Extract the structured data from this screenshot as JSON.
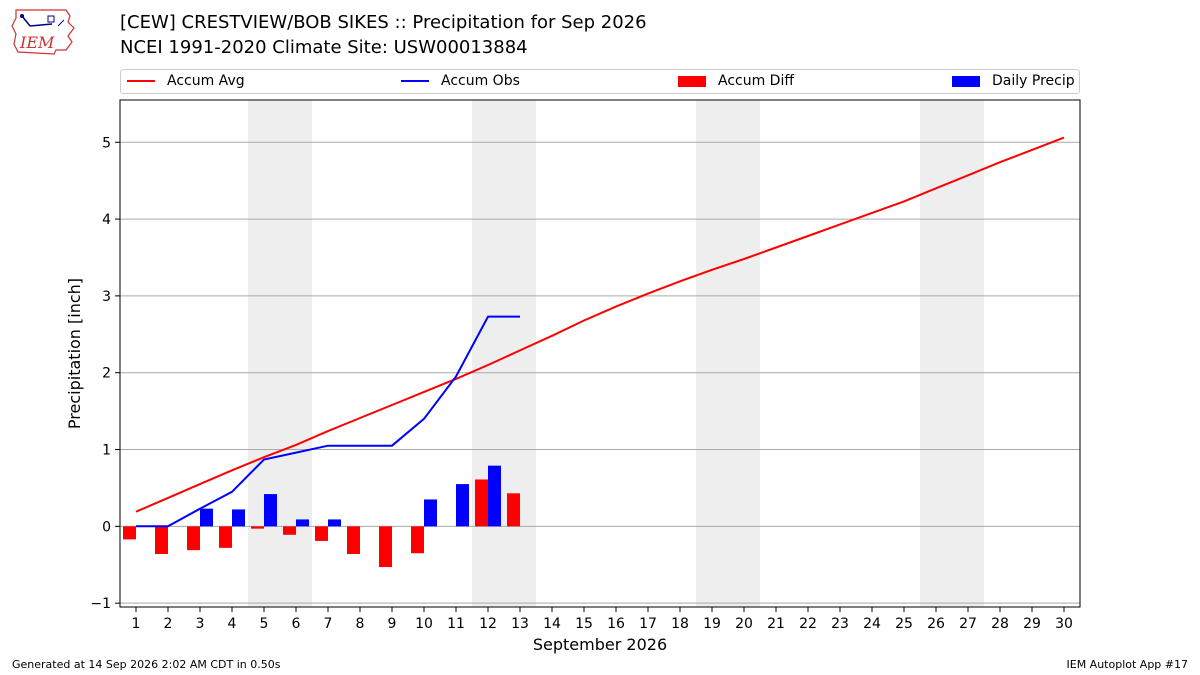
{
  "header": {
    "title_line1": "[CEW] CRESTVIEW/BOB SIKES :: Precipitation for Sep 2026",
    "title_line2": "NCEI 1991-2020 Climate Site: USW00013884",
    "logo_text": "IEM"
  },
  "legend": {
    "accum_avg": "Accum Avg",
    "accum_obs": "Accum Obs",
    "accum_diff": "Accum Diff",
    "daily_precip": "Daily Precip"
  },
  "footer": {
    "generated": "Generated at 14 Sep 2026 2:02 AM CDT in 0.50s",
    "app": "IEM Autoplot App #17"
  },
  "colors": {
    "accum_avg": "#ff0000",
    "accum_obs": "#0000ff",
    "accum_diff": "#ff0000",
    "daily_precip": "#0000ff",
    "weekend_shade": "#eeeeee",
    "grid": "#aaaaaa"
  },
  "chart_data": {
    "type": "bar",
    "xlabel": "September 2026",
    "ylabel": "Precipitation [inch]",
    "xlim": [
      0.5,
      30.5
    ],
    "ylim": [
      -1.05,
      5.55
    ],
    "x_ticks": [
      1,
      2,
      3,
      4,
      5,
      6,
      7,
      8,
      9,
      10,
      11,
      12,
      13,
      14,
      15,
      16,
      17,
      18,
      19,
      20,
      21,
      22,
      23,
      24,
      25,
      26,
      27,
      28,
      29,
      30
    ],
    "y_ticks": [
      -1,
      0,
      1,
      2,
      3,
      4,
      5
    ],
    "y_tick_labels": [
      "−1",
      "0",
      "1",
      "2",
      "3",
      "4",
      "5"
    ],
    "grid": "horizontal",
    "legend_position": "top",
    "shaded_weekends": [
      [
        4.5,
        6.5
      ],
      [
        11.5,
        13.5
      ],
      [
        18.5,
        20.5
      ],
      [
        25.5,
        27.5
      ]
    ],
    "series": [
      {
        "name": "Accum Avg",
        "kind": "line",
        "x": [
          1,
          2,
          3,
          4,
          5,
          6,
          7,
          8,
          9,
          10,
          11,
          12,
          13,
          14,
          15,
          16,
          17,
          18,
          19,
          20,
          21,
          22,
          23,
          24,
          25,
          26,
          27,
          28,
          29,
          30
        ],
        "values": [
          0.19,
          0.37,
          0.55,
          0.73,
          0.9,
          1.06,
          1.24,
          1.41,
          1.58,
          1.75,
          1.92,
          2.1,
          2.29,
          2.48,
          2.68,
          2.86,
          3.03,
          3.19,
          3.34,
          3.48,
          3.63,
          3.78,
          3.93,
          4.08,
          4.23,
          4.4,
          4.57,
          4.74,
          4.9,
          5.06
        ]
      },
      {
        "name": "Accum Obs",
        "kind": "line",
        "x": [
          1,
          2,
          3,
          4,
          5,
          6,
          7,
          8,
          9,
          10,
          11,
          12,
          13
        ],
        "values": [
          0.0,
          0.0,
          0.23,
          0.45,
          0.87,
          0.96,
          1.05,
          1.05,
          1.05,
          1.4,
          1.95,
          2.73,
          2.73
        ]
      },
      {
        "name": "Accum Diff",
        "kind": "bar",
        "x": [
          1,
          2,
          3,
          4,
          5,
          6,
          7,
          8,
          9,
          10,
          11,
          12,
          13
        ],
        "values": [
          -0.17,
          -0.36,
          -0.31,
          -0.28,
          -0.03,
          -0.11,
          -0.19,
          -0.36,
          -0.53,
          -0.35,
          0.0,
          0.61,
          0.43
        ]
      },
      {
        "name": "Daily Precip",
        "kind": "bar",
        "x": [
          1,
          2,
          3,
          4,
          5,
          6,
          7,
          8,
          9,
          10,
          11,
          12,
          13
        ],
        "values": [
          0.0,
          0.0,
          0.23,
          0.22,
          0.42,
          0.09,
          0.09,
          0.0,
          0.0,
          0.35,
          0.55,
          0.79,
          0.0
        ]
      }
    ]
  }
}
